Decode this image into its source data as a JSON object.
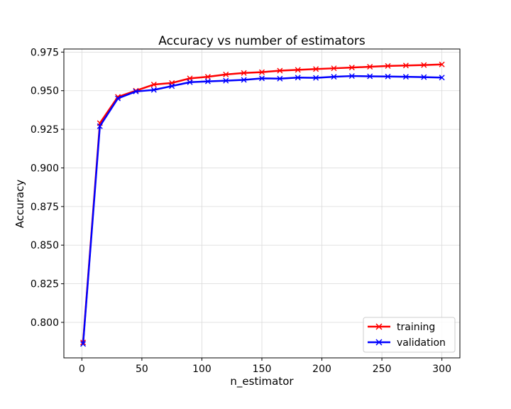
{
  "chart_data": {
    "type": "line",
    "title": "Accuracy vs number of estimators",
    "xlabel": "n_estimator",
    "ylabel": "Accuracy",
    "xlim": [
      -15,
      315
    ],
    "ylim": [
      0.777,
      0.977
    ],
    "xticks": [
      0,
      50,
      100,
      150,
      200,
      250,
      300
    ],
    "xtick_labels": [
      "0",
      "50",
      "100",
      "150",
      "200",
      "250",
      "300"
    ],
    "yticks": [
      0.8,
      0.825,
      0.85,
      0.875,
      0.9,
      0.925,
      0.95,
      0.975
    ],
    "ytick_labels": [
      "0.800",
      "0.825",
      "0.850",
      "0.875",
      "0.900",
      "0.925",
      "0.950",
      "0.975"
    ],
    "grid": true,
    "legend_position": "bottom-right",
    "x": [
      1,
      15,
      30,
      45,
      60,
      75,
      90,
      105,
      120,
      135,
      150,
      165,
      180,
      195,
      210,
      225,
      240,
      255,
      270,
      285,
      300
    ],
    "series": [
      {
        "name": "training",
        "color": "#ff0000",
        "marker": "x",
        "values": [
          0.787,
          0.929,
          0.946,
          0.95,
          0.954,
          0.955,
          0.958,
          0.959,
          0.9605,
          0.9615,
          0.962,
          0.963,
          0.9635,
          0.964,
          0.9645,
          0.965,
          0.9655,
          0.966,
          0.9663,
          0.9666,
          0.967
        ]
      },
      {
        "name": "validation",
        "color": "#0000ff",
        "marker": "x",
        "values": [
          0.786,
          0.927,
          0.945,
          0.9495,
          0.9505,
          0.953,
          0.9555,
          0.956,
          0.9565,
          0.957,
          0.958,
          0.9578,
          0.9585,
          0.9583,
          0.959,
          0.9595,
          0.9593,
          0.9592,
          0.959,
          0.9588,
          0.9585
        ]
      }
    ]
  }
}
